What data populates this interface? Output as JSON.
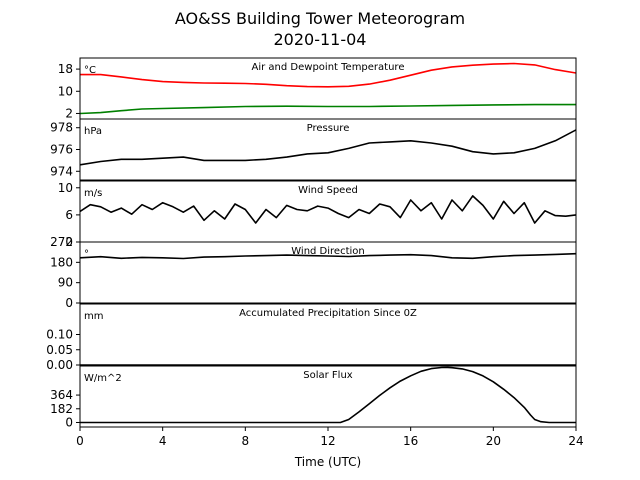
{
  "title": {
    "line1": "AO&SS Building Tower Meteorogram",
    "line2": "2020-11-04"
  },
  "chart_data": {
    "type": "line",
    "xlabel": "Time (UTC)",
    "xlim": [
      0,
      24
    ],
    "xticks": [
      "0",
      "4",
      "8",
      "12",
      "16",
      "20",
      "24"
    ],
    "panels": [
      {
        "id": "temperature",
        "title": "Air and Dewpoint Temperature",
        "unit": "°C",
        "ylim": [
          0,
          22
        ],
        "yticks": [
          2,
          10,
          18
        ],
        "ytick_labels": [
          "2",
          "10",
          "18"
        ],
        "series": [
          {
            "key": "air-temperature",
            "color": "#ff0000",
            "x": [
              0,
              1,
              2,
              3,
              4,
              5,
              6,
              7,
              8,
              9,
              10,
              11,
              12,
              13,
              14,
              15,
              16,
              17,
              18,
              19,
              20,
              21,
              22,
              23,
              24
            ],
            "values": [
              16,
              16,
              15.2,
              14.2,
              13.5,
              13.2,
              13,
              12.9,
              12.8,
              12.5,
              12,
              11.7,
              11.6,
              11.8,
              12.6,
              14,
              15.8,
              17.6,
              18.8,
              19.4,
              19.8,
              20,
              19.5,
              17.8,
              16.6
            ]
          },
          {
            "key": "dewpoint-temperature",
            "color": "#008000",
            "x": [
              0,
              1,
              2,
              3,
              4,
              6,
              8,
              10,
              12,
              14,
              16,
              18,
              20,
              22,
              24
            ],
            "values": [
              2,
              2.3,
              3,
              3.6,
              3.8,
              4.1,
              4.5,
              4.6,
              4.5,
              4.5,
              4.7,
              4.9,
              5.1,
              5.2,
              5.2
            ]
          }
        ]
      },
      {
        "id": "pressure",
        "title": "Pressure",
        "unit": "hPa",
        "ylim": [
          973.2,
          978.8
        ],
        "yticks": [
          974,
          976,
          978
        ],
        "ytick_labels": [
          "974",
          "976",
          "978"
        ],
        "series": [
          {
            "key": "pressure",
            "color": "#000000",
            "x": [
              0,
              1,
              2,
              3,
              4,
              5,
              6,
              7,
              8,
              9,
              10,
              11,
              12,
              13,
              14,
              15,
              16,
              17,
              18,
              19,
              20,
              21,
              22,
              23,
              24
            ],
            "values": [
              974.6,
              974.9,
              975.1,
              975.1,
              975.2,
              975.3,
              975,
              975,
              975,
              975.1,
              975.3,
              975.6,
              975.7,
              976.1,
              976.6,
              976.7,
              976.8,
              976.6,
              976.3,
              975.8,
              975.6,
              975.7,
              976.1,
              976.8,
              977.8
            ]
          }
        ]
      },
      {
        "id": "wind-speed",
        "title": "Wind Speed",
        "unit": "m/s",
        "ylim": [
          2,
          11
        ],
        "yticks": [
          2,
          6,
          10
        ],
        "ytick_labels": [
          "2",
          "6",
          "10"
        ],
        "series": [
          {
            "key": "wind-speed",
            "color": "#000000",
            "x": [
              0,
              0.5,
              1,
              1.5,
              2,
              2.5,
              3,
              3.5,
              4,
              4.5,
              5,
              5.5,
              6,
              6.5,
              7,
              7.5,
              8,
              8.5,
              9,
              9.5,
              10,
              10.5,
              11,
              11.5,
              12,
              12.5,
              13,
              13.5,
              14,
              14.5,
              15,
              15.5,
              16,
              16.5,
              17,
              17.5,
              18,
              18.5,
              19,
              19.5,
              20,
              20.5,
              21,
              21.5,
              22,
              22.5,
              23,
              23.5,
              24
            ],
            "values": [
              6.5,
              7.5,
              7.2,
              6.4,
              7,
              6.1,
              7.5,
              6.8,
              7.8,
              7.2,
              6.4,
              7.3,
              5.2,
              6.6,
              5.4,
              7.6,
              6.8,
              4.8,
              6.8,
              5.6,
              7.4,
              6.8,
              6.6,
              7.3,
              7,
              6.2,
              5.6,
              6.8,
              6.2,
              7.6,
              7.2,
              5.6,
              8.2,
              6.6,
              7.8,
              5.4,
              8.2,
              6.6,
              8.8,
              7.4,
              5.4,
              8,
              6.2,
              7.8,
              4.8,
              6.6,
              5.9,
              5.8,
              6
            ]
          }
        ]
      },
      {
        "id": "wind-direction",
        "title": "Wind Direction",
        "unit": "°",
        "ylim": [
          0,
          270
        ],
        "yticks": [
          0,
          90,
          180,
          270
        ],
        "ytick_labels": [
          "0",
          "90",
          "180",
          "270"
        ],
        "series": [
          {
            "key": "wind-direction",
            "color": "#000000",
            "x": [
              0,
              1,
              2,
              3,
              4,
              5,
              6,
              7,
              8,
              9,
              10,
              11,
              12,
              13,
              14,
              15,
              16,
              17,
              18,
              19,
              20,
              21,
              22,
              23,
              24
            ],
            "values": [
              200,
              205,
              198,
              202,
              200,
              197,
              203,
              205,
              208,
              210,
              212,
              210,
              208,
              206,
              210,
              212,
              214,
              210,
              200,
              198,
              205,
              210,
              212,
              215,
              218
            ]
          }
        ]
      },
      {
        "id": "precipitation",
        "title": "Accumulated Precipitation Since 0Z",
        "unit": "mm",
        "ylim": [
          0,
          0.2
        ],
        "yticks": [
          0,
          0.05,
          0.1
        ],
        "ytick_labels": [
          "0.00",
          "0.05",
          "0.10"
        ],
        "series": [
          {
            "key": "precipitation",
            "color": "#000000",
            "x": [
              0,
              24
            ],
            "values": [
              0,
              0
            ]
          }
        ]
      },
      {
        "id": "solar-flux",
        "title": "Solar Flux",
        "unit": "W/m^2",
        "ylim": [
          -60,
          750
        ],
        "yticks": [
          0,
          182,
          364
        ],
        "ytick_labels": [
          "0",
          "182",
          "364"
        ],
        "series": [
          {
            "key": "solar-flux",
            "color": "#000000",
            "x": [
              0,
              12.6,
              13,
              13.5,
              14,
              14.5,
              15,
              15.5,
              16,
              16.5,
              17,
              17.5,
              17.8,
              18,
              18.5,
              19,
              19.5,
              20,
              20.5,
              21,
              21.5,
              21.8,
              22,
              22.3,
              22.7,
              23,
              24
            ],
            "values": [
              0,
              0,
              40,
              140,
              250,
              360,
              460,
              550,
              620,
              680,
              715,
              730,
              732,
              728,
              712,
              675,
              618,
              540,
              440,
              330,
              200,
              100,
              40,
              10,
              0,
              0,
              0
            ]
          }
        ]
      }
    ]
  }
}
